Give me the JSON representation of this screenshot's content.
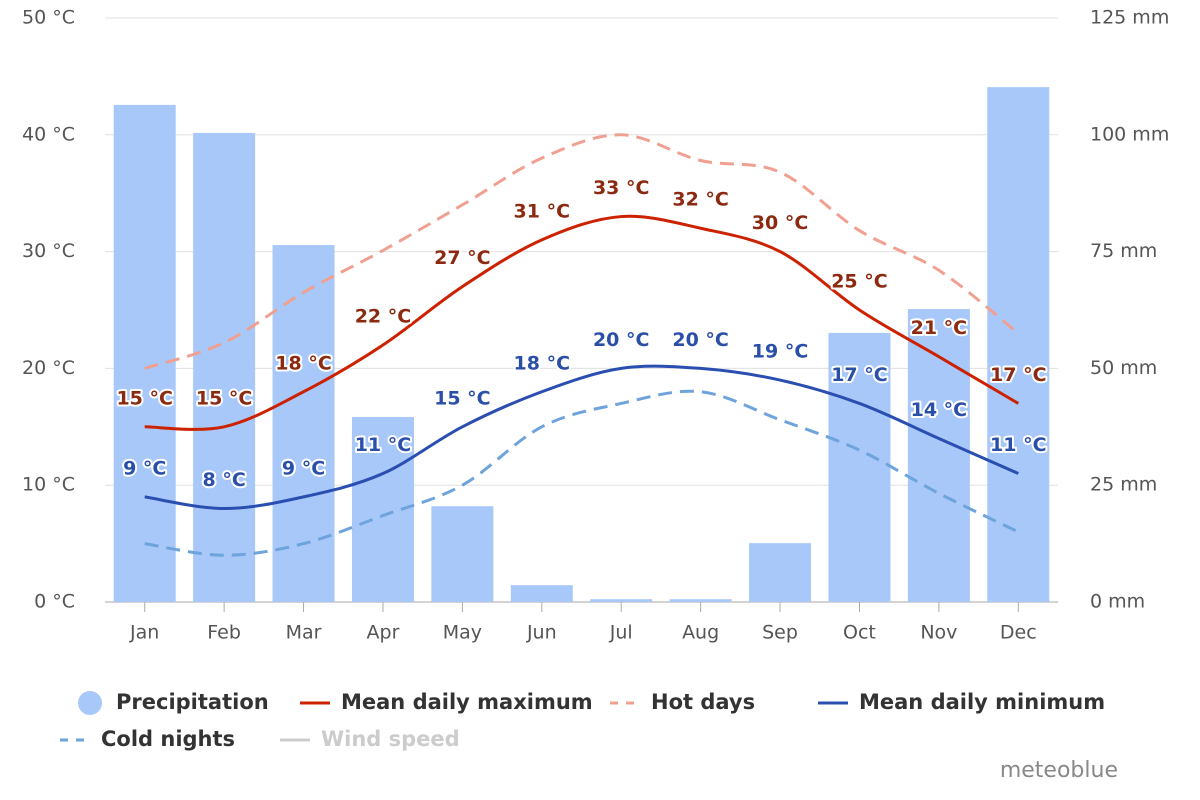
{
  "chart_data": {
    "type": "climate",
    "categories": [
      "Jan",
      "Feb",
      "Mar",
      "Apr",
      "May",
      "Jun",
      "Jul",
      "Aug",
      "Sep",
      "Oct",
      "Nov",
      "Dec"
    ],
    "ylim": [
      0,
      50
    ],
    "yticks": [
      {
        "value": 0,
        "label": "0 °C"
      },
      {
        "value": 10,
        "label": "10 °C"
      },
      {
        "value": 20,
        "label": "20 °C"
      },
      {
        "value": 30,
        "label": "30 °C"
      },
      {
        "value": 40,
        "label": "40 °C"
      },
      {
        "value": 50,
        "label": "50 °C"
      }
    ],
    "y2lim": [
      0,
      125
    ],
    "y2ticks": [
      {
        "value": 0,
        "label": "0 mm"
      },
      {
        "value": 25,
        "label": "25 mm"
      },
      {
        "value": 50,
        "label": "50 mm"
      },
      {
        "value": 75,
        "label": "75 mm"
      },
      {
        "value": 100,
        "label": "100 mm"
      },
      {
        "value": 125,
        "label": "125 mm"
      }
    ],
    "grid": true,
    "series": [
      {
        "name": "Precipitation",
        "type": "bar",
        "axis": "y2",
        "color": "#a8c8fa",
        "values": [
          106.4,
          100.4,
          76.4,
          39.6,
          20.5,
          3.6,
          0.6,
          0.6,
          12.6,
          57.6,
          62.7,
          110.2
        ]
      },
      {
        "name": "Mean daily maximum",
        "type": "line",
        "color": "#cc2200",
        "label_color": "#8b2a10",
        "values": [
          15,
          15,
          18,
          22,
          27,
          31,
          33,
          32,
          30,
          25,
          21,
          17
        ],
        "value_labels": [
          "15 °C",
          "15 °C",
          "18 °C",
          "22 °C",
          "27 °C",
          "31 °C",
          "33 °C",
          "32 °C",
          "30 °C",
          "25 °C",
          "21 °C",
          "17 °C"
        ]
      },
      {
        "name": "Hot days",
        "type": "line",
        "dashed": true,
        "color": "#f0a090",
        "values": [
          20,
          22.2,
          26.5,
          30.1,
          34,
          38,
          40,
          37.8,
          36.8,
          31.8,
          28.4,
          23
        ]
      },
      {
        "name": "Mean daily minimum",
        "type": "line",
        "color": "#2a4fb0",
        "label_color": "#2a4fa8",
        "values": [
          9,
          8,
          9,
          11,
          15,
          18,
          20,
          20,
          19,
          17,
          14,
          11
        ],
        "value_labels": [
          "9 °C",
          "8 °C",
          "9 °C",
          "11 °C",
          "15 °C",
          "18 °C",
          "20 °C",
          "20 °C",
          "19 °C",
          "17 °C",
          "14 °C",
          "11 °C"
        ]
      },
      {
        "name": "Cold nights",
        "type": "line",
        "dashed": true,
        "color": "#6ea3dc",
        "values": [
          5,
          4,
          5,
          7.4,
          10,
          15,
          17,
          18,
          15.6,
          13,
          9.3,
          6
        ]
      },
      {
        "name": "Wind speed",
        "type": "line",
        "hidden": true,
        "color": "#cccccc"
      }
    ],
    "credit": "meteoblue"
  }
}
